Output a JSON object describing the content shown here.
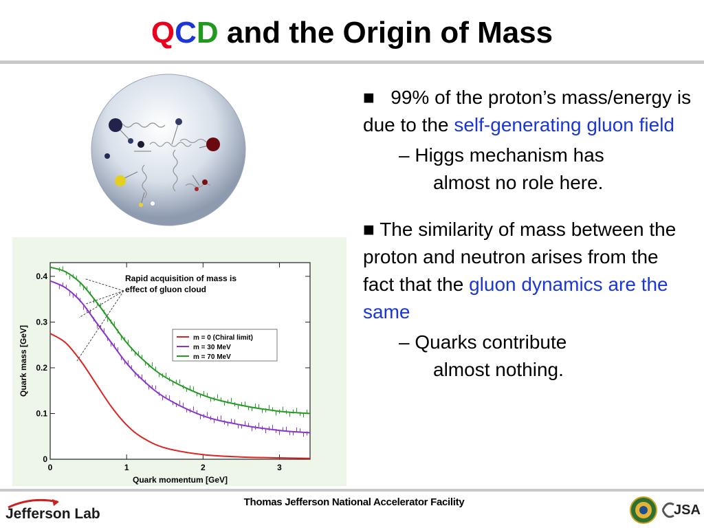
{
  "title": {
    "q": "Q",
    "c": "C",
    "d": "D",
    "rest": " and the Origin of Mass"
  },
  "colors": {
    "q": "#e8001c",
    "c": "#1a36d6",
    "d": "#1f9a1f",
    "highlight": "#1a36d6"
  },
  "bullet1": {
    "bullet": "■",
    "lead": "99% of the proton’s mass/energy is due to the",
    "highlight": "self-generating gluon field",
    "sub_lead": "– Higgs mechanism has",
    "sub_cont": "almost no role here."
  },
  "bullet2": {
    "bullet": "■",
    "lead": "The similarity of mass between the proton and neutron arises from the fact that the",
    "highlight": "gluon dynamics are the same",
    "sub_lead": "– Quarks contribute",
    "sub_cont": "almost nothing."
  },
  "chart_data": {
    "type": "line",
    "xlabel": "Quark momentum [GeV]",
    "ylabel": "Quark mass [GeV]",
    "xlim": [
      0,
      3.4
    ],
    "ylim": [
      0,
      0.43
    ],
    "xticks": [
      0,
      1,
      2,
      3
    ],
    "yticks": [
      0,
      0.1,
      0.2,
      0.3,
      0.4
    ],
    "yticklabels": [
      "0",
      "0.1",
      "0.2",
      "0.3",
      "0.4"
    ],
    "annotation": [
      "Rapid acquisition of mass is",
      "effect of gluon cloud"
    ],
    "legend_position": "right",
    "series": [
      {
        "name": "m = 0 (Chiral limit)",
        "color": "#dd2222",
        "x": [
          0,
          0.2,
          0.4,
          0.6,
          0.8,
          1.0,
          1.2,
          1.5,
          2.0,
          2.5,
          3.0,
          3.4
        ],
        "y": [
          0.275,
          0.255,
          0.215,
          0.165,
          0.115,
          0.075,
          0.048,
          0.025,
          0.01,
          0.005,
          0.003,
          0.002
        ]
      },
      {
        "name": "m = 30 MeV",
        "color": "#8833cc",
        "x": [
          0,
          0.2,
          0.4,
          0.6,
          0.8,
          1.0,
          1.2,
          1.5,
          2.0,
          2.5,
          3.0,
          3.4
        ],
        "y": [
          0.39,
          0.375,
          0.345,
          0.3,
          0.255,
          0.21,
          0.175,
          0.135,
          0.095,
          0.075,
          0.063,
          0.058
        ]
      },
      {
        "name": "m = 70 MeV",
        "color": "#229922",
        "x": [
          0,
          0.2,
          0.4,
          0.6,
          0.8,
          1.0,
          1.2,
          1.5,
          2.0,
          2.5,
          3.0,
          3.4
        ],
        "y": [
          0.42,
          0.41,
          0.385,
          0.345,
          0.3,
          0.255,
          0.22,
          0.18,
          0.14,
          0.118,
          0.105,
          0.1
        ]
      }
    ]
  },
  "footer": {
    "center": "Thomas Jefferson National Accelerator Facility",
    "logo_left": "Jefferson Lab",
    "logo_right": "JSA"
  }
}
